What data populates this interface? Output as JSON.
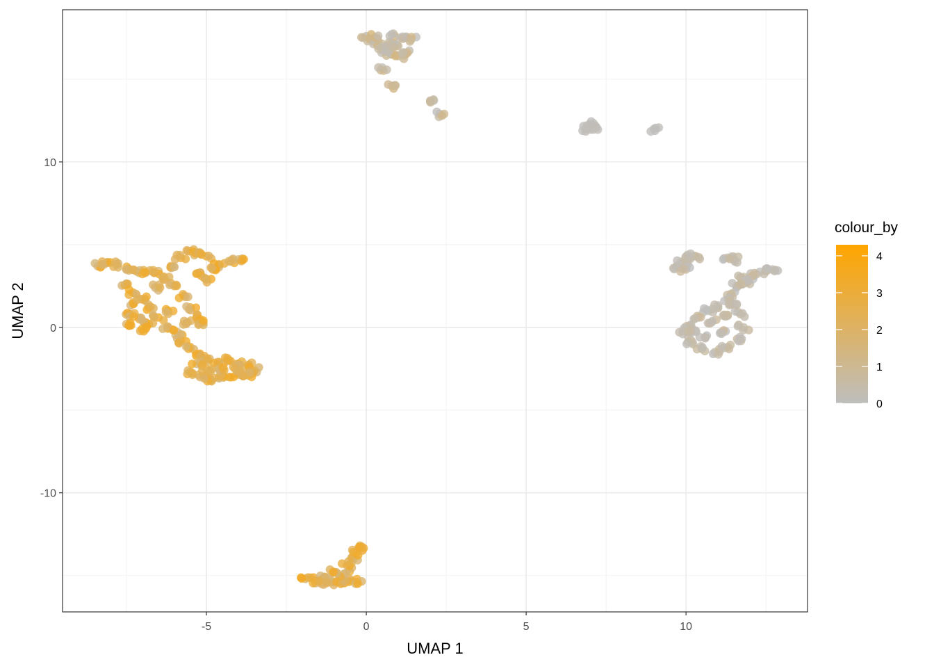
{
  "chart_data": {
    "type": "scatter",
    "title": "",
    "xlabel": "UMAP 1",
    "ylabel": "UMAP 2",
    "xlim": [
      -9.5,
      13.8
    ],
    "ylim": [
      -17.2,
      19.2
    ],
    "x_ticks": [
      -5,
      0,
      5,
      10
    ],
    "x_tick_labels": [
      "-5",
      "0",
      "5",
      "10"
    ],
    "y_ticks": [
      -10,
      0,
      10
    ],
    "y_tick_labels": [
      "-10",
      "0",
      "10"
    ],
    "x_minor_gridlines": [
      -7.5,
      -2.5,
      2.5,
      7.5,
      12.5
    ],
    "y_minor_gridlines": [
      -15,
      -5,
      5,
      15
    ],
    "grid": true,
    "legend": {
      "title": "colour_by",
      "placement": "right",
      "type": "gradient",
      "min": 0,
      "max": 4.3,
      "breaks": [
        0,
        1,
        2,
        3,
        4
      ],
      "break_labels": [
        "0",
        "1",
        "2",
        "3",
        "4"
      ],
      "low_color": "#BEBEBE",
      "high_color": "#FFA500"
    },
    "clusters": [
      {
        "name": "left cluster",
        "value_range": [
          1.5,
          3.5
        ],
        "points": [
          [
            -8.4,
            3.7
          ],
          [
            -8.1,
            3.9
          ],
          [
            -7.8,
            3.8
          ],
          [
            -7.5,
            3.5
          ],
          [
            -7.2,
            3.4
          ],
          [
            -6.9,
            3.3
          ],
          [
            -6.5,
            3.4
          ],
          [
            -6.1,
            3.6
          ],
          [
            -5.8,
            4.2
          ],
          [
            -5.5,
            4.6
          ],
          [
            -5.3,
            4.5
          ],
          [
            -5.0,
            4.3
          ],
          [
            -4.6,
            3.8
          ],
          [
            -4.3,
            4.0
          ],
          [
            -4.0,
            4.1
          ],
          [
            -7.5,
            2.6
          ],
          [
            -7.3,
            2.1
          ],
          [
            -7.0,
            1.7
          ],
          [
            -6.8,
            1.2
          ],
          [
            -7.3,
            1.5
          ],
          [
            -6.6,
            2.4
          ],
          [
            -6.3,
            2.9
          ],
          [
            -6.0,
            2.5
          ],
          [
            -5.7,
            1.9
          ],
          [
            -5.5,
            1.2
          ],
          [
            -5.2,
            3.3
          ],
          [
            -5.0,
            2.9
          ],
          [
            -4.8,
            3.5
          ],
          [
            -6.2,
            1.0
          ],
          [
            -7.4,
            0.8
          ],
          [
            -7.1,
            0.5
          ],
          [
            -6.8,
            0.2
          ],
          [
            -6.5,
            0.6
          ],
          [
            -6.2,
            0.0
          ],
          [
            -5.9,
            -0.3
          ],
          [
            -5.6,
            0.3
          ],
          [
            -5.3,
            0.6
          ],
          [
            -5.1,
            0.3
          ],
          [
            -7.5,
            0.2
          ],
          [
            -6.9,
            -0.1
          ],
          [
            -5.8,
            -0.8
          ],
          [
            -5.5,
            -1.2
          ],
          [
            -5.2,
            -1.6
          ],
          [
            -4.9,
            -1.9
          ],
          [
            -4.6,
            -2.1
          ],
          [
            -4.3,
            -2.0
          ],
          [
            -4.0,
            -2.2
          ],
          [
            -3.7,
            -2.3
          ],
          [
            -3.5,
            -2.6
          ],
          [
            -3.7,
            -2.9
          ],
          [
            -4.0,
            -2.8
          ],
          [
            -4.3,
            -3.0
          ],
          [
            -4.6,
            -3.0
          ],
          [
            -4.9,
            -3.1
          ],
          [
            -5.2,
            -3.0
          ],
          [
            -5.5,
            -2.7
          ],
          [
            -5.3,
            -2.2
          ],
          [
            -5.0,
            -2.5
          ],
          [
            -4.5,
            -2.6
          ],
          [
            -4.1,
            -2.5
          ]
        ]
      },
      {
        "name": "bottom cluster",
        "value_range": [
          1.5,
          3.5
        ],
        "points": [
          [
            -1.9,
            -15.2
          ],
          [
            -1.6,
            -15.3
          ],
          [
            -1.3,
            -15.1
          ],
          [
            -1.1,
            -15.4
          ],
          [
            -0.8,
            -15.5
          ],
          [
            -0.5,
            -15.3
          ],
          [
            -0.3,
            -15.4
          ],
          [
            -0.7,
            -14.9
          ],
          [
            -1.4,
            -15.5
          ],
          [
            -1.0,
            -14.8
          ],
          [
            -0.6,
            -14.4
          ],
          [
            -0.4,
            -14.0
          ],
          [
            -0.3,
            -13.6
          ],
          [
            -0.2,
            -13.2
          ]
        ]
      },
      {
        "name": "top cluster",
        "value_range": [
          0,
          1.5
        ],
        "points": [
          [
            0.0,
            17.6
          ],
          [
            0.2,
            17.3
          ],
          [
            0.4,
            17.0
          ],
          [
            0.6,
            16.7
          ],
          [
            0.8,
            16.5
          ],
          [
            1.0,
            16.4
          ],
          [
            1.2,
            16.6
          ],
          [
            0.8,
            17.2
          ],
          [
            1.0,
            17.0
          ],
          [
            0.9,
            17.6
          ],
          [
            1.2,
            17.5
          ],
          [
            1.4,
            17.4
          ],
          [
            0.5,
            16.9
          ],
          [
            0.3,
            17.5
          ],
          [
            0.5,
            15.7
          ],
          [
            0.8,
            14.6
          ],
          [
            2.0,
            13.7
          ],
          [
            2.3,
            12.9
          ]
        ]
      },
      {
        "name": "small right group",
        "value_range": [
          0,
          0.3
        ],
        "points": [
          [
            6.9,
            12.0
          ],
          [
            7.1,
            12.1
          ],
          [
            7.0,
            12.3
          ],
          [
            9.0,
            12.0
          ]
        ]
      },
      {
        "name": "right cluster",
        "value_range": [
          0,
          0.8
        ],
        "points": [
          [
            9.7,
            3.7
          ],
          [
            9.9,
            3.9
          ],
          [
            10.1,
            4.2
          ],
          [
            10.3,
            4.3
          ],
          [
            10.0,
            3.5
          ],
          [
            11.3,
            4.2
          ],
          [
            11.5,
            4.1
          ],
          [
            11.7,
            3.0
          ],
          [
            11.9,
            2.7
          ],
          [
            12.2,
            3.2
          ],
          [
            12.5,
            3.4
          ],
          [
            12.7,
            3.5
          ],
          [
            12.0,
            3.0
          ],
          [
            11.6,
            2.5
          ],
          [
            11.4,
            2.0
          ],
          [
            11.2,
            1.6
          ],
          [
            11.0,
            1.2
          ],
          [
            10.7,
            1.0
          ],
          [
            10.4,
            0.6
          ],
          [
            10.1,
            0.1
          ],
          [
            9.9,
            -0.4
          ],
          [
            10.2,
            -0.9
          ],
          [
            10.5,
            -1.3
          ],
          [
            10.9,
            -1.5
          ],
          [
            11.3,
            -1.2
          ],
          [
            11.6,
            -0.7
          ],
          [
            11.8,
            0.0
          ],
          [
            11.7,
            0.8
          ],
          [
            11.5,
            1.4
          ],
          [
            10.8,
            0.3
          ],
          [
            11.1,
            -0.3
          ],
          [
            10.6,
            -0.6
          ],
          [
            11.3,
            0.7
          ],
          [
            10.3,
            -0.2
          ]
        ]
      }
    ]
  }
}
